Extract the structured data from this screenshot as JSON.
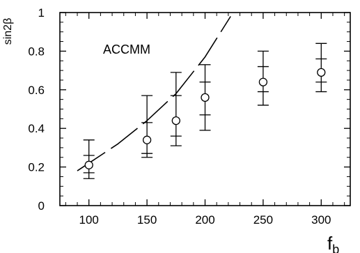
{
  "chart_data": {
    "type": "scatter",
    "title": "",
    "annotation": "ACCMM",
    "ylabel": "sin2β",
    "xlabel_main": "f",
    "xlabel_sub": "b",
    "xlim": [
      75,
      325
    ],
    "ylim": [
      0,
      1
    ],
    "x_ticks": [
      100,
      150,
      200,
      250,
      300
    ],
    "y_ticks": [
      0,
      0.2,
      0.4,
      0.6,
      0.8,
      1
    ],
    "y_tick_labels": [
      "0",
      "0.2",
      "0.4",
      "0.6",
      "0.8",
      "1"
    ],
    "grid": false,
    "points": [
      {
        "x": 100,
        "y": 0.21,
        "inner": [
          0.17,
          0.26
        ],
        "outer": [
          0.14,
          0.34
        ]
      },
      {
        "x": 150,
        "y": 0.34,
        "inner": [
          0.27,
          0.43
        ],
        "outer": [
          0.25,
          0.57
        ]
      },
      {
        "x": 175,
        "y": 0.44,
        "inner": [
          0.36,
          0.57
        ],
        "outer": [
          0.31,
          0.69
        ]
      },
      {
        "x": 200,
        "y": 0.56,
        "inner": [
          0.47,
          0.64
        ],
        "outer": [
          0.39,
          0.73
        ]
      },
      {
        "x": 250,
        "y": 0.64,
        "inner": [
          0.59,
          0.72
        ],
        "outer": [
          0.52,
          0.8
        ]
      },
      {
        "x": 300,
        "y": 0.69,
        "inner": [
          0.64,
          0.76
        ],
        "outer": [
          0.59,
          0.84
        ]
      }
    ],
    "curve": {
      "style": "dashed",
      "x": [
        90,
        100,
        125,
        150,
        175,
        200,
        222
      ],
      "y": [
        0.18,
        0.22,
        0.32,
        0.44,
        0.58,
        0.77,
        0.98
      ]
    }
  }
}
